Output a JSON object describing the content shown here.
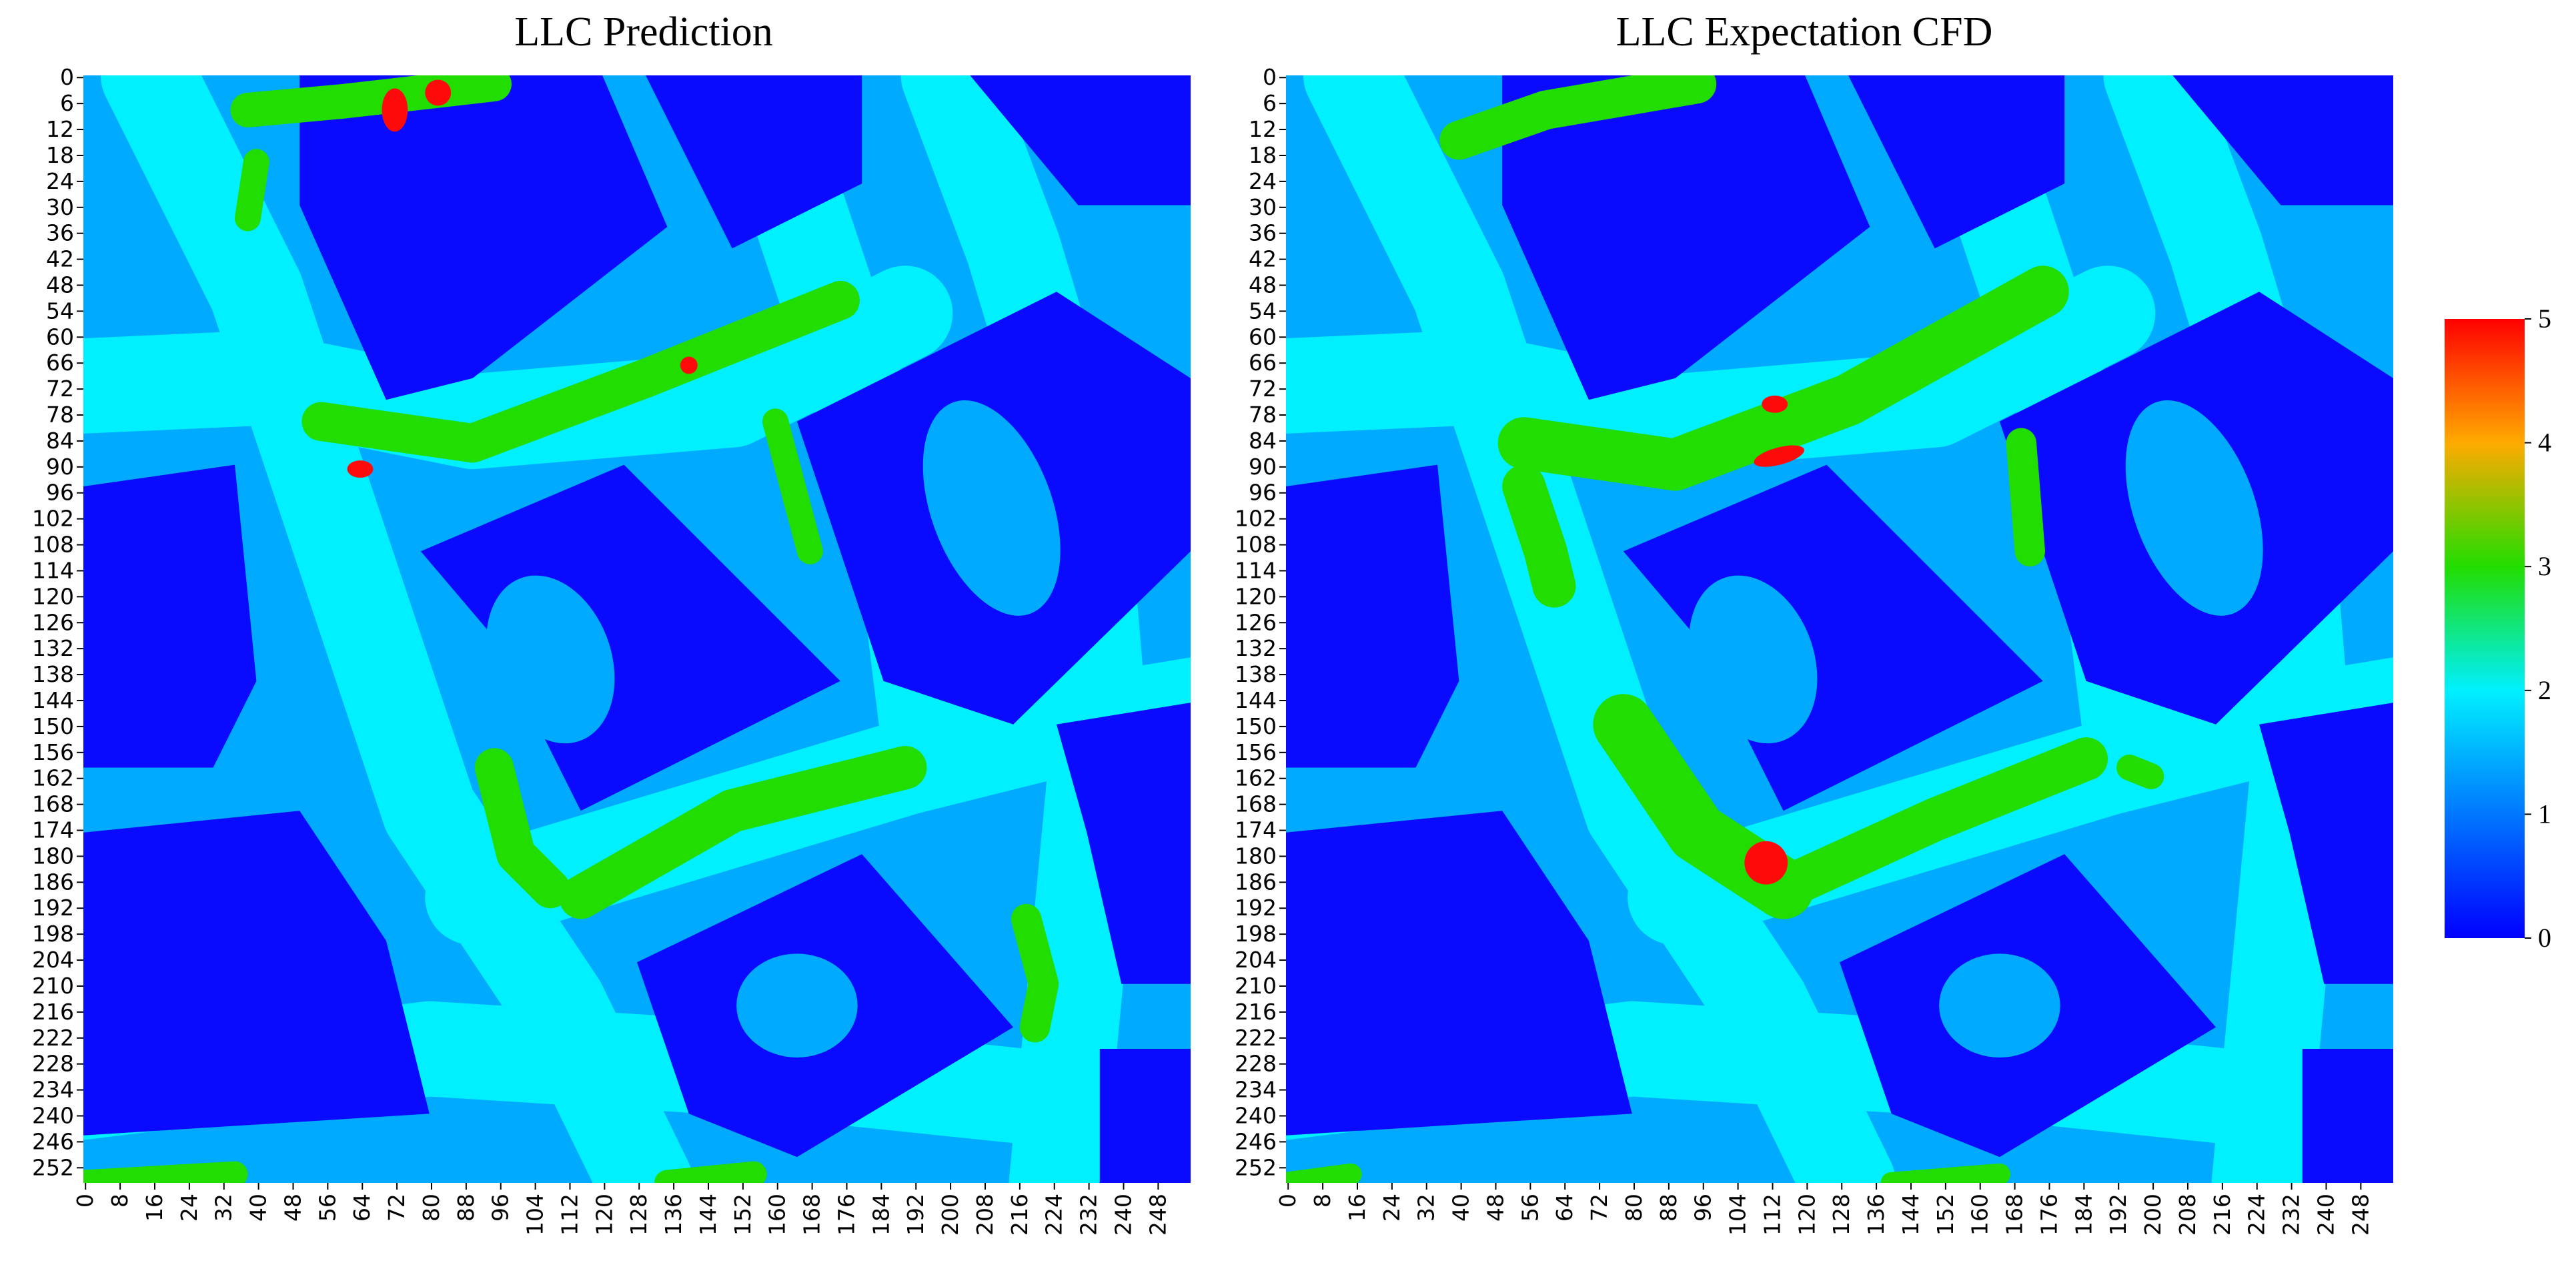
{
  "chart_data": [
    {
      "type": "heatmap",
      "title": "LLC Prediction",
      "xlabel": "",
      "ylabel": "",
      "grid_size": 256,
      "x_ticks": [
        "0",
        "8",
        "16",
        "24",
        "32",
        "40",
        "48",
        "56",
        "64",
        "72",
        "80",
        "88",
        "96",
        "104",
        "112",
        "120",
        "128",
        "136",
        "144",
        "152",
        "160",
        "168",
        "176",
        "184",
        "192",
        "200",
        "208",
        "216",
        "224",
        "232",
        "240",
        "248"
      ],
      "y_ticks": [
        "0",
        "6",
        "12",
        "18",
        "24",
        "30",
        "36",
        "42",
        "48",
        "54",
        "60",
        "66",
        "72",
        "78",
        "84",
        "90",
        "96",
        "102",
        "108",
        "114",
        "120",
        "126",
        "132",
        "138",
        "144",
        "150",
        "156",
        "162",
        "168",
        "174",
        "180",
        "186",
        "192",
        "198",
        "204",
        "210",
        "216",
        "222",
        "228",
        "234",
        "240",
        "246",
        "252"
      ],
      "value_range": [
        0,
        5
      ],
      "description": "Discrete level map (0–5) of urban blocks (level 0) separated by street corridors (levels 1–3) with scattered hotspots (level 5)"
    },
    {
      "type": "heatmap",
      "title": "LLC Expectation CFD",
      "xlabel": "",
      "ylabel": "",
      "grid_size": 256,
      "x_ticks": [
        "0",
        "8",
        "16",
        "24",
        "32",
        "40",
        "48",
        "56",
        "64",
        "72",
        "80",
        "88",
        "96",
        "104",
        "112",
        "120",
        "128",
        "136",
        "144",
        "152",
        "160",
        "168",
        "176",
        "184",
        "192",
        "200",
        "208",
        "216",
        "224",
        "232",
        "240",
        "248"
      ],
      "y_ticks": [
        "0",
        "6",
        "12",
        "18",
        "24",
        "30",
        "36",
        "42",
        "48",
        "54",
        "60",
        "66",
        "72",
        "78",
        "84",
        "90",
        "96",
        "102",
        "108",
        "114",
        "120",
        "126",
        "132",
        "138",
        "144",
        "150",
        "156",
        "162",
        "168",
        "174",
        "180",
        "186",
        "192",
        "198",
        "204",
        "210",
        "216",
        "222",
        "228",
        "234",
        "240",
        "246",
        "252"
      ],
      "value_range": [
        0,
        5
      ],
      "description": "Discrete level map (0–5) with the same street layout, smoother green corridors and two red hotspots"
    }
  ],
  "colorbar": {
    "ticks": [
      "0",
      "1",
      "2",
      "3",
      "4",
      "5"
    ],
    "range": [
      0,
      5
    ],
    "colormap": "jet"
  },
  "colors": {
    "level_0": "#0a0aff",
    "level_1": "#00aaff",
    "level_2": "#00f0ff",
    "level_3": "#22dd00",
    "level_5": "#ff0a0a"
  }
}
